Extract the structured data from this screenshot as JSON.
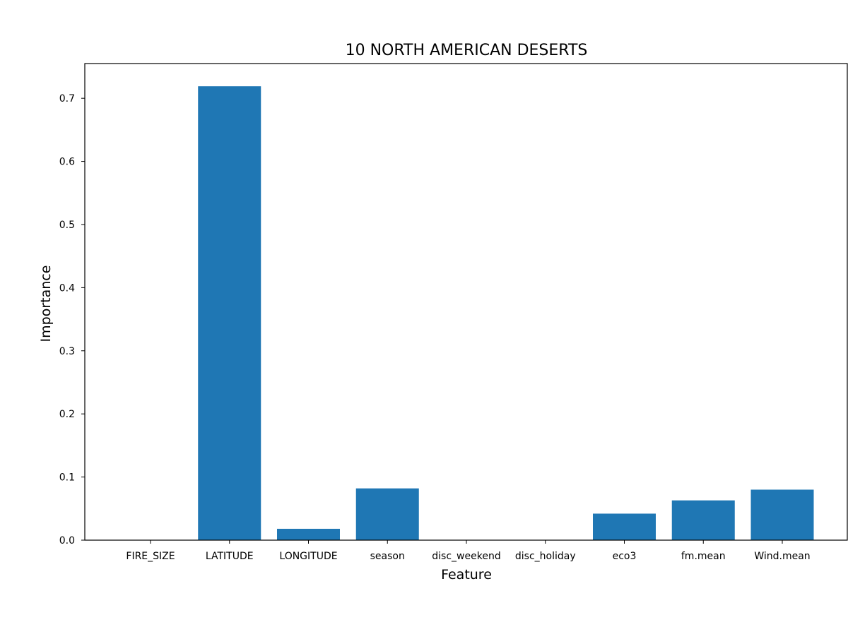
{
  "chart_data": {
    "type": "bar",
    "title": "10  NORTH AMERICAN DESERTS",
    "xlabel": "Feature",
    "ylabel": "Importance",
    "categories": [
      "FIRE_SIZE",
      "LATITUDE",
      "LONGITUDE",
      "season",
      "disc_weekend",
      "disc_holiday",
      "eco3",
      "fm.mean",
      "Wind.mean"
    ],
    "values": [
      0.0,
      0.719,
      0.018,
      0.082,
      0.0,
      0.0,
      0.042,
      0.063,
      0.08
    ],
    "ylim": [
      0,
      0.755
    ],
    "yticks": [
      "0.0",
      "0.1",
      "0.2",
      "0.3",
      "0.4",
      "0.5",
      "0.6",
      "0.7"
    ],
    "bar_color": "#1f77b4",
    "grid": false
  }
}
